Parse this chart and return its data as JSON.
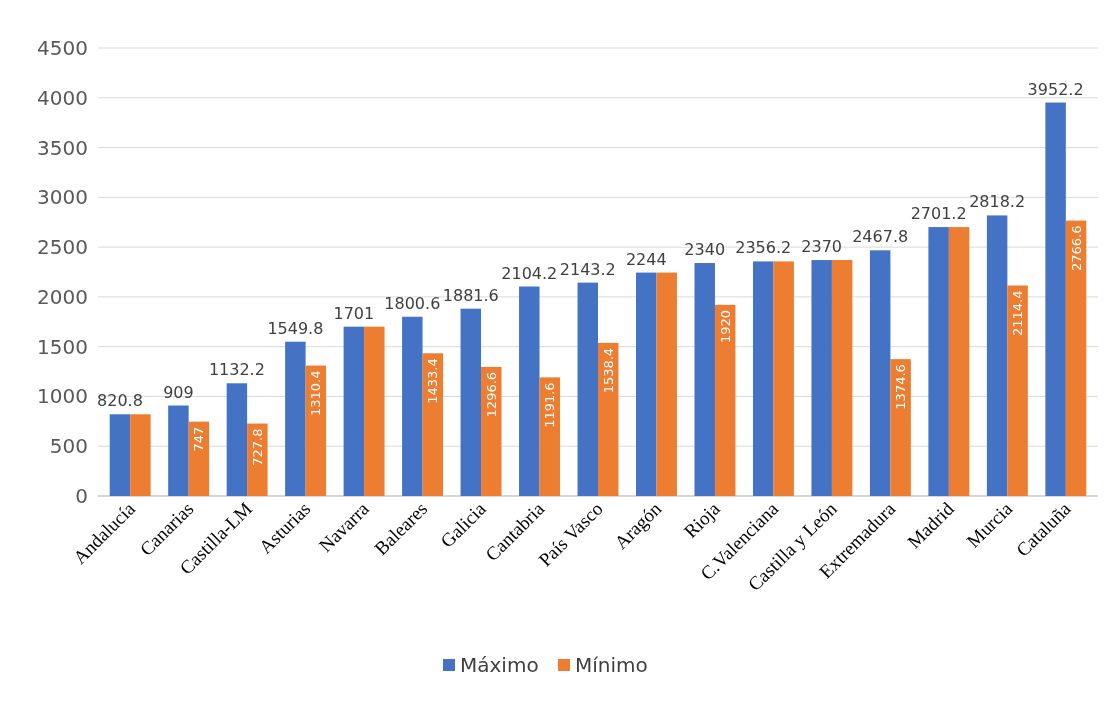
{
  "chart_data": {
    "type": "bar",
    "categories": [
      "Andalucía",
      "Canarias",
      "Castilla-LM",
      "Asturias",
      "Navarra",
      "Baleares",
      "Galicia",
      "Cantabria",
      "País Vasco",
      "Aragón",
      "Rioja",
      "C.Valenciana",
      "Castilla y León",
      "Extremadura",
      "Madrid",
      "Murcia",
      "Cataluña"
    ],
    "series": [
      {
        "name": "Máximo",
        "color": "#4472c4",
        "values": [
          820.8,
          909,
          1132.2,
          1549.8,
          1701,
          1800.6,
          1881.6,
          2104.2,
          2143.2,
          2244,
          2340,
          2356.2,
          2370,
          2467.8,
          2701.2,
          2818.2,
          3952.2
        ],
        "value_labels": [
          "820.8",
          "909",
          "1132.2",
          "1549.8",
          "1701",
          "1800.6",
          "1881.6",
          "2104.2",
          "2143.2",
          "2244",
          "2340",
          "2356.2",
          "2370",
          "2467.8",
          "2701.2",
          "2818.2",
          "3952.2"
        ]
      },
      {
        "name": "Mínimo",
        "color": "#ed7d31",
        "values": [
          820.8,
          747,
          727.8,
          1310.4,
          1701,
          1433.4,
          1296.6,
          1191.6,
          1538.4,
          2244,
          1920,
          2356.2,
          2370,
          1374.6,
          2701.2,
          2114.4,
          2766.6
        ],
        "value_labels": [
          null,
          "747",
          "727.8",
          "1310.4",
          null,
          "1433.4",
          "1296.6",
          "1191.6",
          "1538.4",
          null,
          "1920",
          null,
          null,
          "1374.6",
          null,
          "2114.4",
          "2766.6"
        ]
      }
    ],
    "ylim": [
      0,
      4500
    ],
    "yticks": [
      0,
      500,
      1000,
      1500,
      2000,
      2500,
      3000,
      3500,
      4000,
      4500
    ],
    "grid": "y",
    "legend": "bottom"
  }
}
